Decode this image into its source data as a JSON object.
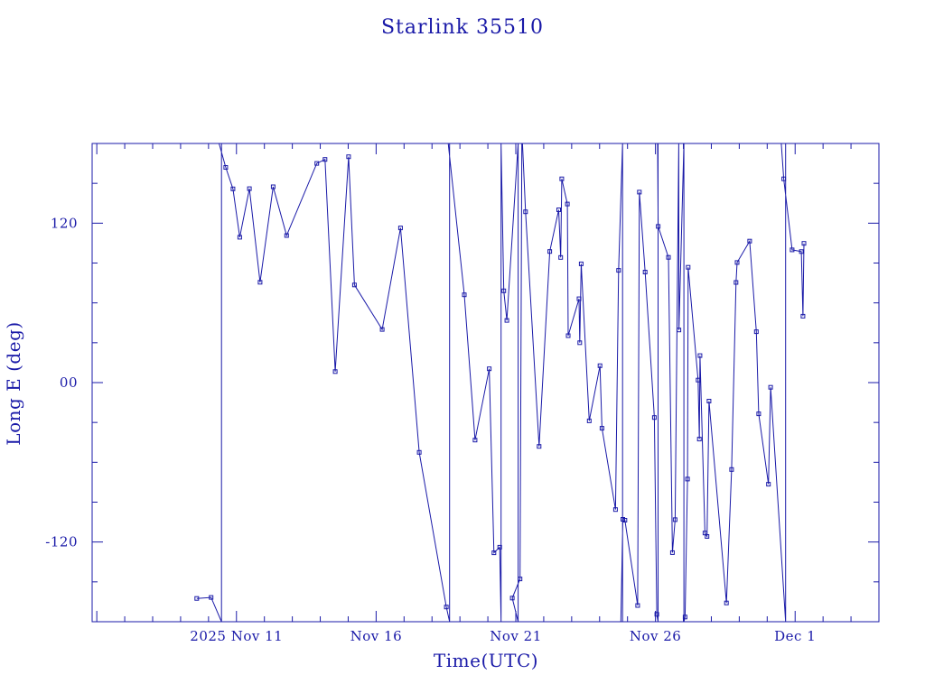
{
  "chart_data": {
    "type": "line",
    "title": "Starlink 35510",
    "xlabel": "Time(UTC)",
    "ylabel": "Long E (deg)",
    "xlim": [
      "2025-11-05T20:00",
      "2025-12-04T00:00"
    ],
    "ylim": [
      -180,
      180
    ],
    "grid": false,
    "legend": "none",
    "colors": {
      "axes": "#1a1aa8",
      "series": "#1a1aa8",
      "background": "#ffffff"
    },
    "x_ticks": [
      {
        "date": "2025-11-11",
        "label": "2025 Nov 11"
      },
      {
        "date": "2025-11-16",
        "label": "Nov 16"
      },
      {
        "date": "2025-11-21",
        "label": "Nov 21"
      },
      {
        "date": "2025-11-26",
        "label": "Nov 26"
      },
      {
        "date": "2025-12-01",
        "label": "Dec  1"
      }
    ],
    "y_ticks": [
      {
        "value": 120,
        "label": "120"
      },
      {
        "value": 0,
        "label": "00"
      },
      {
        "value": -120,
        "label": "-120"
      }
    ],
    "series": [
      {
        "points": [
          [
            "2025-11-09T13:54",
            -162.5
          ],
          [
            "2025-11-10T02:15",
            -161.7
          ],
          [
            "2025-11-10T11:08",
            -180.0
          ],
          [
            "2025-11-10T11:08",
            180.0
          ],
          [
            "2025-11-10T09:05",
            180.0
          ],
          [
            "2025-11-10T14:48",
            162.0
          ],
          [
            "2025-11-10T21:00",
            145.8
          ],
          [
            "2025-11-11T02:47",
            109.4
          ],
          [
            "2025-11-11T11:08",
            146.0
          ],
          [
            "2025-11-11T20:17",
            75.5
          ],
          [
            "2025-11-12T07:34",
            147.4
          ],
          [
            "2025-11-12T19:07",
            110.7
          ],
          [
            "2025-11-13T21:00",
            165.0
          ],
          [
            "2025-11-14T04:05",
            168.0
          ],
          [
            "2025-11-14T12:50",
            8.3
          ],
          [
            "2025-11-15T00:22",
            170.0
          ],
          [
            "2025-11-15T05:22",
            73.5
          ],
          [
            "2025-11-16T05:12",
            40.0
          ],
          [
            "2025-11-16T20:56",
            116.4
          ],
          [
            "2025-11-17T13:02",
            -52.5
          ],
          [
            "2025-11-18T12:21",
            -168.9
          ],
          [
            "2025-11-18T15:08",
            -180.0
          ],
          [
            "2025-11-18T15:08",
            180.0
          ],
          [
            "2025-11-18T13:55",
            180.0
          ],
          [
            "2025-11-19T03:47",
            66.1
          ],
          [
            "2025-11-19T13:02",
            -43.3
          ],
          [
            "2025-11-20T01:09",
            10.4
          ],
          [
            "2025-11-20T05:13",
            -128.1
          ],
          [
            "2025-11-20T10:10",
            -123.9
          ],
          [
            "2025-11-20T11:20",
            -180.0
          ],
          [
            "2025-11-20T11:20",
            180.0
          ],
          [
            "2025-11-20T13:41",
            69.1
          ],
          [
            "2025-11-20T16:20",
            46.8
          ],
          [
            "2025-11-21T02:02",
            180.0
          ],
          [
            "2025-11-21T02:02",
            -180.0
          ],
          [
            "2025-11-20T21:00",
            -162.2
          ],
          [
            "2025-11-21T03:41",
            -147.8
          ],
          [
            "2025-11-21T05:13",
            181.0
          ],
          [
            "2025-11-21T05:44",
            180.0
          ],
          [
            "2025-11-21T05:44",
            180.0
          ],
          [
            "2025-11-21T08:25",
            128.6
          ],
          [
            "2025-11-21T20:00",
            -48.0
          ],
          [
            "2025-11-22T05:12",
            98.7
          ],
          [
            "2025-11-22T12:50",
            130.1
          ],
          [
            "2025-11-22T14:33",
            94.2
          ],
          [
            "2025-11-22T15:32",
            153.4
          ],
          [
            "2025-11-22T20:18",
            134.4
          ],
          [
            "2025-11-22T21:00",
            35.3
          ],
          [
            "2025-11-23T06:21",
            63.1
          ],
          [
            "2025-11-23T06:55",
            30.0
          ],
          [
            "2025-11-23T08:12",
            89.4
          ],
          [
            "2025-11-23T15:08",
            -28.8
          ],
          [
            "2025-11-24T00:22",
            12.7
          ],
          [
            "2025-11-24T02:03",
            -34.4
          ],
          [
            "2025-11-24T13:41",
            -95.6
          ],
          [
            "2025-11-24T16:21",
            84.5
          ],
          [
            "2025-11-24T19:46",
            180.0
          ],
          [
            "2025-11-24T19:46",
            -180.0
          ],
          [
            "2025-11-24T18:18",
            -180.0
          ],
          [
            "2025-11-24T20:00",
            -102.9
          ],
          [
            "2025-11-24T21:47",
            -103.6
          ],
          [
            "2025-11-25T08:44",
            -167.8
          ],
          [
            "2025-11-25T10:10",
            143.4
          ],
          [
            "2025-11-25T15:08",
            83.2
          ],
          [
            "2025-11-25T23:04",
            -26.3
          ],
          [
            "2025-11-26T01:09",
            -174.4
          ],
          [
            "2025-11-26T02:16",
            -180.0
          ],
          [
            "2025-11-26T02:16",
            180.0
          ],
          [
            "2025-11-26T01:50",
            180.0
          ],
          [
            "2025-11-26T02:17",
            117.6
          ],
          [
            "2025-11-26T11:09",
            94.3
          ],
          [
            "2025-11-26T14:33",
            -128.0
          ],
          [
            "2025-11-26T16:54",
            -103.2
          ],
          [
            "2025-11-26T20:00",
            180.0
          ],
          [
            "2025-11-26T20:00",
            180.0
          ],
          [
            "2025-11-26T20:09",
            39.6
          ],
          [
            "2025-11-27T00:24",
            180.0
          ],
          [
            "2025-11-27T00:24",
            -180.0
          ],
          [
            "2025-11-27T01:27",
            -176.5
          ],
          [
            "2025-11-27T03:33",
            -72.6
          ],
          [
            "2025-11-27T04:05",
            86.8
          ],
          [
            "2025-11-27T12:36",
            1.9
          ],
          [
            "2025-11-27T13:41",
            -42.5
          ],
          [
            "2025-11-27T14:15",
            20.3
          ],
          [
            "2025-11-27T18:32",
            -113.2
          ],
          [
            "2025-11-27T20:19",
            -115.8
          ],
          [
            "2025-11-27T21:59",
            -13.9
          ],
          [
            "2025-11-28T13:01",
            -165.9
          ],
          [
            "2025-11-28T17:27",
            -65.4
          ],
          [
            "2025-11-28T21:11",
            75.4
          ],
          [
            "2025-11-28T22:07",
            90.4
          ],
          [
            "2025-11-29T08:58",
            106.5
          ],
          [
            "2025-11-29T14:43",
            38.3
          ],
          [
            "2025-11-29T16:40",
            -23.5
          ],
          [
            "2025-11-30T01:04",
            -76.5
          ],
          [
            "2025-11-30T02:57",
            -3.5
          ],
          [
            "2025-11-30T15:49",
            -180.0
          ],
          [
            "2025-11-30T15:49",
            180.0
          ],
          [
            "2025-11-30T12:07",
            180.0
          ],
          [
            "2025-11-30T14:10",
            153.4
          ],
          [
            "2025-11-30T21:23",
            99.9
          ],
          [
            "2025-12-01T05:22",
            98.6
          ],
          [
            "2025-12-01T06:42",
            50.0
          ],
          [
            "2025-12-01T07:34",
            104.8
          ]
        ]
      }
    ]
  }
}
